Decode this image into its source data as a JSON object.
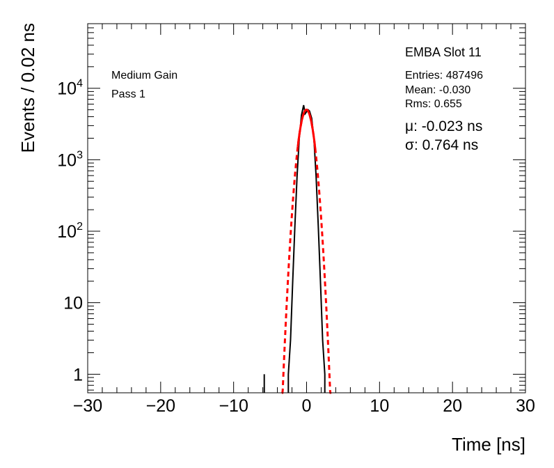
{
  "chart_data": {
    "type": "line",
    "xlabel": "Time [ns]",
    "ylabel": "Events / 0.02 ns",
    "xlim": [
      -30,
      30
    ],
    "ylim": [
      0.55,
      80000
    ],
    "yscale": "log",
    "grid": false,
    "x_ticks": [
      -30,
      -20,
      -10,
      0,
      10,
      20,
      30
    ],
    "x_tick_labels": [
      "−30",
      "−20",
      "−10",
      "0",
      "10",
      "20",
      "30"
    ],
    "y_ticks": [
      {
        "value": 1,
        "base": "1",
        "exp": ""
      },
      {
        "value": 10,
        "base": "10",
        "exp": ""
      },
      {
        "value": 100,
        "base": "10",
        "exp": "2"
      },
      {
        "value": 1000,
        "base": "10",
        "exp": "3"
      },
      {
        "value": 10000,
        "base": "10",
        "exp": "4"
      }
    ],
    "annotations": {
      "gain": "Medium Gain",
      "pass": "Pass 1",
      "slot": "EMBA Slot 11",
      "entries": "Entries: 487496",
      "mean": "Mean: -0.030",
      "rms": "Rms: 0.655",
      "mu": "μ: -0.023 ns",
      "sigma": "σ: 0.764 ns"
    },
    "series": [
      {
        "color": "#000000",
        "style": "histogram",
        "x": [
          -5.8,
          -2.5,
          -2.2,
          -1.9,
          -1.6,
          -1.3,
          -1.0,
          -0.7,
          -0.4,
          -0.2,
          0.0,
          0.2,
          0.4,
          0.7,
          1.0,
          1.3,
          1.6,
          1.9,
          2.2,
          2.5
        ],
        "y": [
          1,
          1,
          3,
          20,
          120,
          600,
          2000,
          4200,
          5800,
          4400,
          4700,
          5000,
          4800,
          3800,
          2000,
          600,
          120,
          20,
          3,
          1
        ]
      },
      {
        "color": "#ff0000",
        "style": "fit",
        "mu": -0.023,
        "sigma": 0.764,
        "amplitude": 5000,
        "solid_range": [
          -1.2,
          1.2
        ],
        "dashed_range": [
          -3.4,
          3.4
        ]
      }
    ]
  }
}
